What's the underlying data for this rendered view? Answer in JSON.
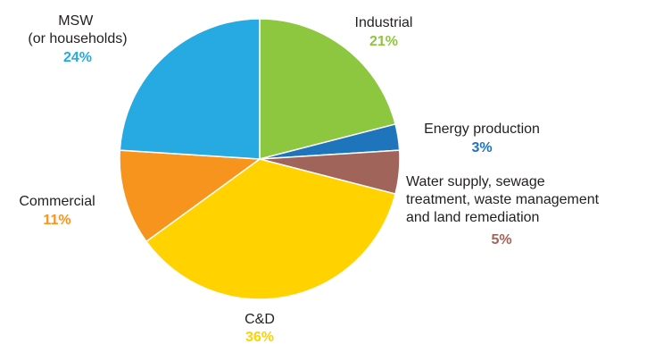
{
  "chart_data": {
    "type": "pie",
    "title": "",
    "slices": [
      {
        "label": [
          "Industrial"
        ],
        "value": 21,
        "value_label": "21%",
        "color": "#8dc63f"
      },
      {
        "label": [
          "Energy production"
        ],
        "value": 3,
        "value_label": "3%",
        "color": "#1f75bc"
      },
      {
        "label": [
          "Water supply, sewage",
          "treatment, waste management",
          "and land remediation"
        ],
        "value": 5,
        "value_label": "5%",
        "color": "#a0645a"
      },
      {
        "label": [
          "C&D"
        ],
        "value": 36,
        "value_label": "36%",
        "color": "#ffd200"
      },
      {
        "label": [
          "Commercial"
        ],
        "value": 11,
        "value_label": "11%",
        "color": "#f7941e"
      },
      {
        "label": [
          "MSW",
          "(or households)"
        ],
        "value": 24,
        "value_label": "24%",
        "color": "#27aae1"
      }
    ]
  }
}
